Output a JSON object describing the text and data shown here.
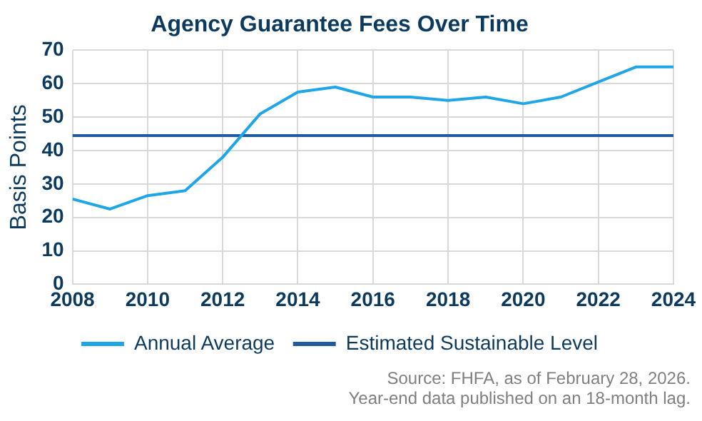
{
  "chart_data": {
    "type": "line",
    "title": "Agency Guarantee Fees Over Time",
    "ylabel": "Basis Points",
    "x": [
      2008,
      2009,
      2010,
      2011,
      2012,
      2013,
      2014,
      2015,
      2016,
      2017,
      2018,
      2019,
      2020,
      2021,
      2022,
      2023,
      2024
    ],
    "series": [
      {
        "name": "Annual Average",
        "color": "#1ea6e6",
        "values": [
          25.5,
          22.5,
          26.5,
          28,
          38,
          51,
          57.5,
          59,
          56,
          56,
          55,
          56,
          54,
          56,
          60.5,
          65,
          65
        ]
      },
      {
        "name": "Estimated Sustainable Level",
        "color": "#1f5b9e",
        "values": [
          44.5,
          44.5,
          44.5,
          44.5,
          44.5,
          44.5,
          44.5,
          44.5,
          44.5,
          44.5,
          44.5,
          44.5,
          44.5,
          44.5,
          44.5,
          44.5,
          44.5
        ]
      }
    ],
    "xlim": [
      2008,
      2024
    ],
    "xticks": [
      2008,
      2010,
      2012,
      2014,
      2016,
      2018,
      2020,
      2022,
      2024
    ],
    "ylim": [
      0,
      70
    ],
    "yticks": [
      0,
      10,
      20,
      30,
      40,
      50,
      60,
      70
    ],
    "grid": true,
    "legend": "bottom",
    "marker": "none",
    "line_style": "solid",
    "annotations": [
      "Source: FHFA, as of February 28, 2026.",
      "Year-end data published on an 18-month lag."
    ]
  }
}
